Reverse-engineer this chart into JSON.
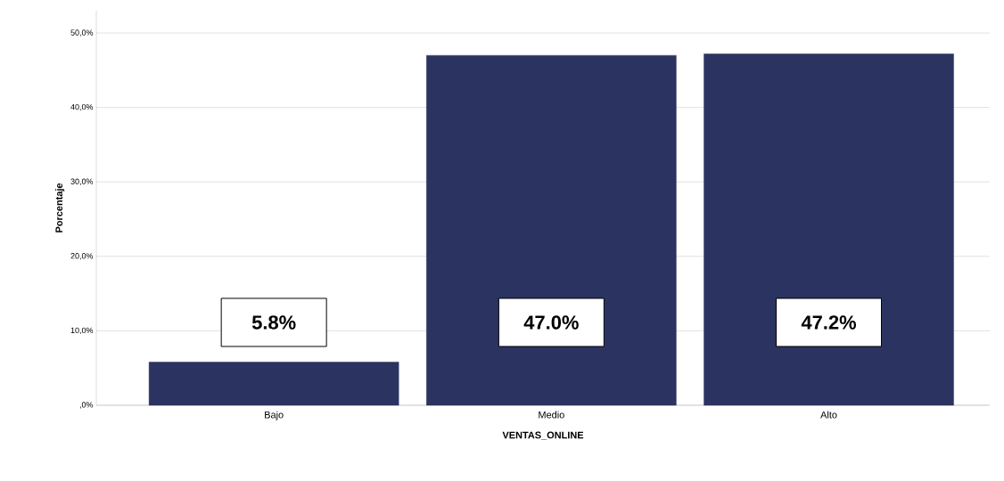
{
  "chart_data": {
    "type": "bar",
    "xlabel": "VENTAS_ONLINE",
    "ylabel": "Porcentaje",
    "categories": [
      "Bajo",
      "Medio",
      "Alto"
    ],
    "values": [
      5.8,
      47.0,
      47.2
    ],
    "value_labels": [
      "5.8%",
      "47.0%",
      "47.2%"
    ],
    "color": "#2b3461",
    "ylim": [
      0,
      53
    ],
    "yticks": [
      {
        "value": 0,
        "label": ",0%"
      },
      {
        "value": 10,
        "label": "10,0%"
      },
      {
        "value": 20,
        "label": "20,0%"
      },
      {
        "value": 30,
        "label": "30,0%"
      },
      {
        "value": 40,
        "label": "40,0%"
      },
      {
        "value": 50,
        "label": "50,0%"
      }
    ],
    "grid": "y"
  }
}
